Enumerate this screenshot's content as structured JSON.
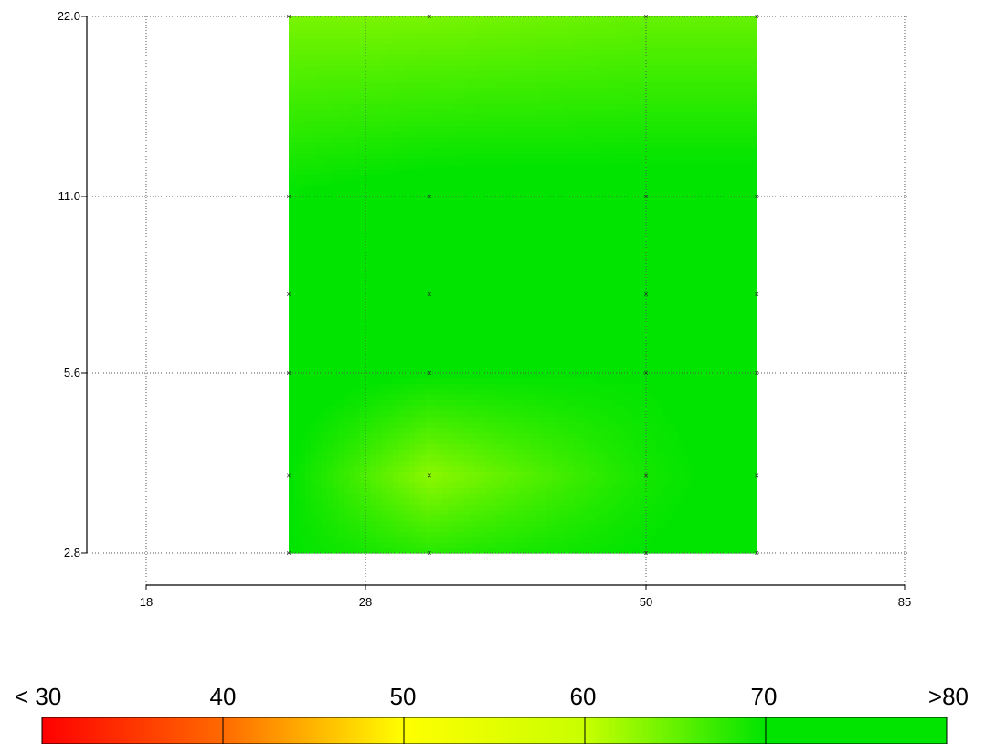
{
  "chart_data": {
    "type": "heatmap",
    "x_ticks": [
      18,
      28,
      50,
      85
    ],
    "y_ticks": [
      2.8,
      5.6,
      11.0,
      22.0
    ],
    "x_tick_labels": [
      "18",
      "28",
      "50",
      "85"
    ],
    "y_tick_labels": [
      "2.8",
      "5.6",
      "11.0",
      "22.0"
    ],
    "grid": true,
    "sample_x": [
      24.5,
      33,
      50,
      65
    ],
    "sample_y": [
      2.8,
      4.0,
      5.6,
      8.0,
      11.0,
      22.0
    ],
    "z_approx": [
      [
        70,
        68,
        70,
        71
      ],
      [
        70,
        63,
        69,
        71
      ],
      [
        71,
        70,
        70,
        71
      ],
      [
        71,
        71,
        71,
        71
      ],
      [
        70,
        71,
        71,
        71
      ],
      [
        64,
        64,
        65,
        65
      ]
    ],
    "colorbar": {
      "labels": [
        "< 30",
        "40",
        "50",
        "60",
        "70",
        ">80"
      ],
      "values": [
        30,
        40,
        50,
        60,
        70,
        80
      ],
      "colors": [
        "#ff0000",
        "#ff6a00",
        "#ffff00",
        "#c8ff00",
        "#00e400",
        "#00e400"
      ]
    }
  }
}
